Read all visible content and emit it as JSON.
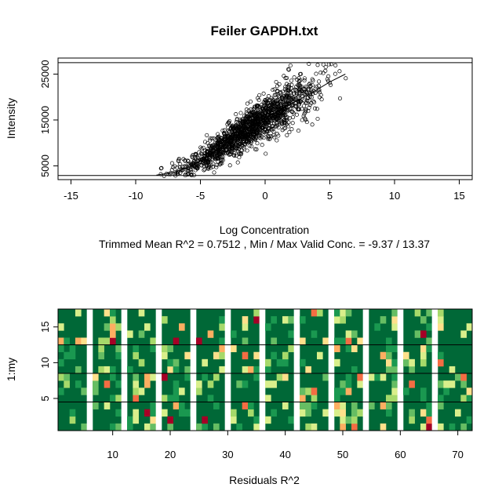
{
  "chart_data": [
    {
      "type": "scatter",
      "title": "Feiler GAPDH.txt",
      "xlabel": "Log Concentration",
      "ylabel": "Intensity",
      "subtitle": "Trimmed Mean R^2 = 0.7512 , Min / Max Valid Conc. = -9.37 / 13.37",
      "xlim": [
        -16,
        16
      ],
      "ylim": [
        2000,
        28500
      ],
      "x_ticks": [
        -15,
        -10,
        -5,
        0,
        5,
        10,
        15
      ],
      "y_ticks": [
        5000,
        15000,
        25000
      ],
      "y_tick_labels": [
        "5000",
        "15000",
        "25000"
      ],
      "hlines": [
        2900,
        27500
      ],
      "fit_line": {
        "x": [
          -8.4,
          -7,
          -6,
          -5,
          -4,
          -3,
          -2,
          -1,
          0,
          1,
          2,
          3,
          4,
          5,
          6.2
        ],
        "y": [
          3000,
          3600,
          4600,
          6000,
          7800,
          9800,
          11800,
          13700,
          15400,
          17000,
          18500,
          20000,
          21600,
          23300,
          25000
        ]
      },
      "points": {
        "count": 1500,
        "x_range": [
          -8.6,
          6.3
        ],
        "marker": "open-circle",
        "color": "#000000"
      }
    },
    {
      "type": "heatmap",
      "xlabel": "Residuals R^2",
      "ylabel": "1:my",
      "xlim": [
        0.5,
        72.5
      ],
      "ylim": [
        0.5,
        17.5
      ],
      "x_ticks": [
        10,
        20,
        30,
        40,
        50,
        60,
        70
      ],
      "y_ticks": [
        5,
        10,
        15
      ],
      "hlines": [
        4.5,
        8.5,
        12.5
      ],
      "white_columns": [
        6,
        12,
        18,
        24,
        30,
        36,
        42,
        48,
        54,
        60,
        66
      ],
      "palette": [
        "#006837",
        "#1a9850",
        "#66bd63",
        "#a6d96a",
        "#d9ef8b",
        "#fee08b",
        "#fdae61",
        "#f46d43",
        "#d73027",
        "#a50026"
      ],
      "colors": {
        "base": "#006837",
        "separator": "#ffffff"
      }
    }
  ]
}
